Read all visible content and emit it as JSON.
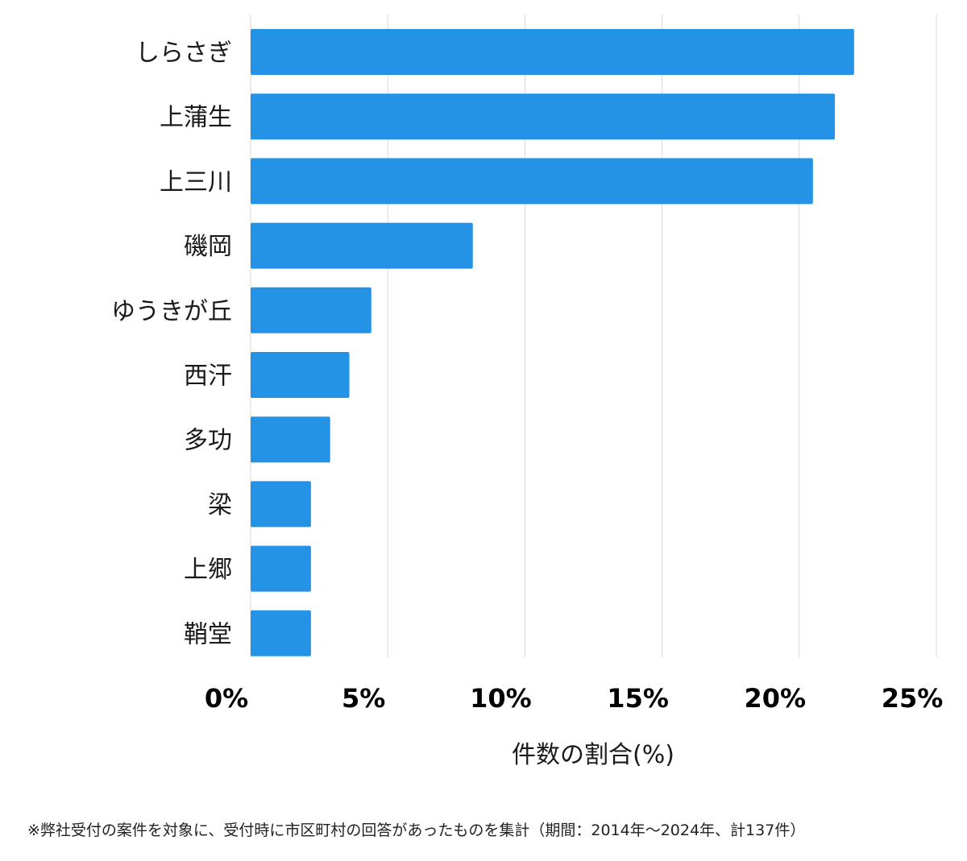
{
  "chart_data": {
    "type": "bar",
    "orientation": "horizontal",
    "categories": [
      "しらさぎ",
      "上蒲生",
      "上三川",
      "磯岡",
      "ゆうきが丘",
      "西汗",
      "多功",
      "梁",
      "上郷",
      "鞘堂"
    ],
    "values": [
      22.0,
      21.3,
      20.5,
      8.1,
      4.4,
      3.6,
      2.9,
      2.2,
      2.2,
      2.2
    ],
    "xlabel": "件数の割合(%)",
    "xlim": [
      0,
      25
    ],
    "xticks": [
      0,
      5,
      10,
      15,
      20,
      25
    ],
    "xtick_labels": [
      "0%",
      "5%",
      "10%",
      "15%",
      "20%",
      "25%"
    ],
    "grid": "vertical",
    "bar_color": "#2493e6"
  },
  "colors": {
    "bar": "#2493e6",
    "grid": "#d9d9d9"
  },
  "footnote": "※弊社受付の案件を対象に、受付時に市区町村の回答があったものを集計（期間：2014年～2024年、計137件）"
}
